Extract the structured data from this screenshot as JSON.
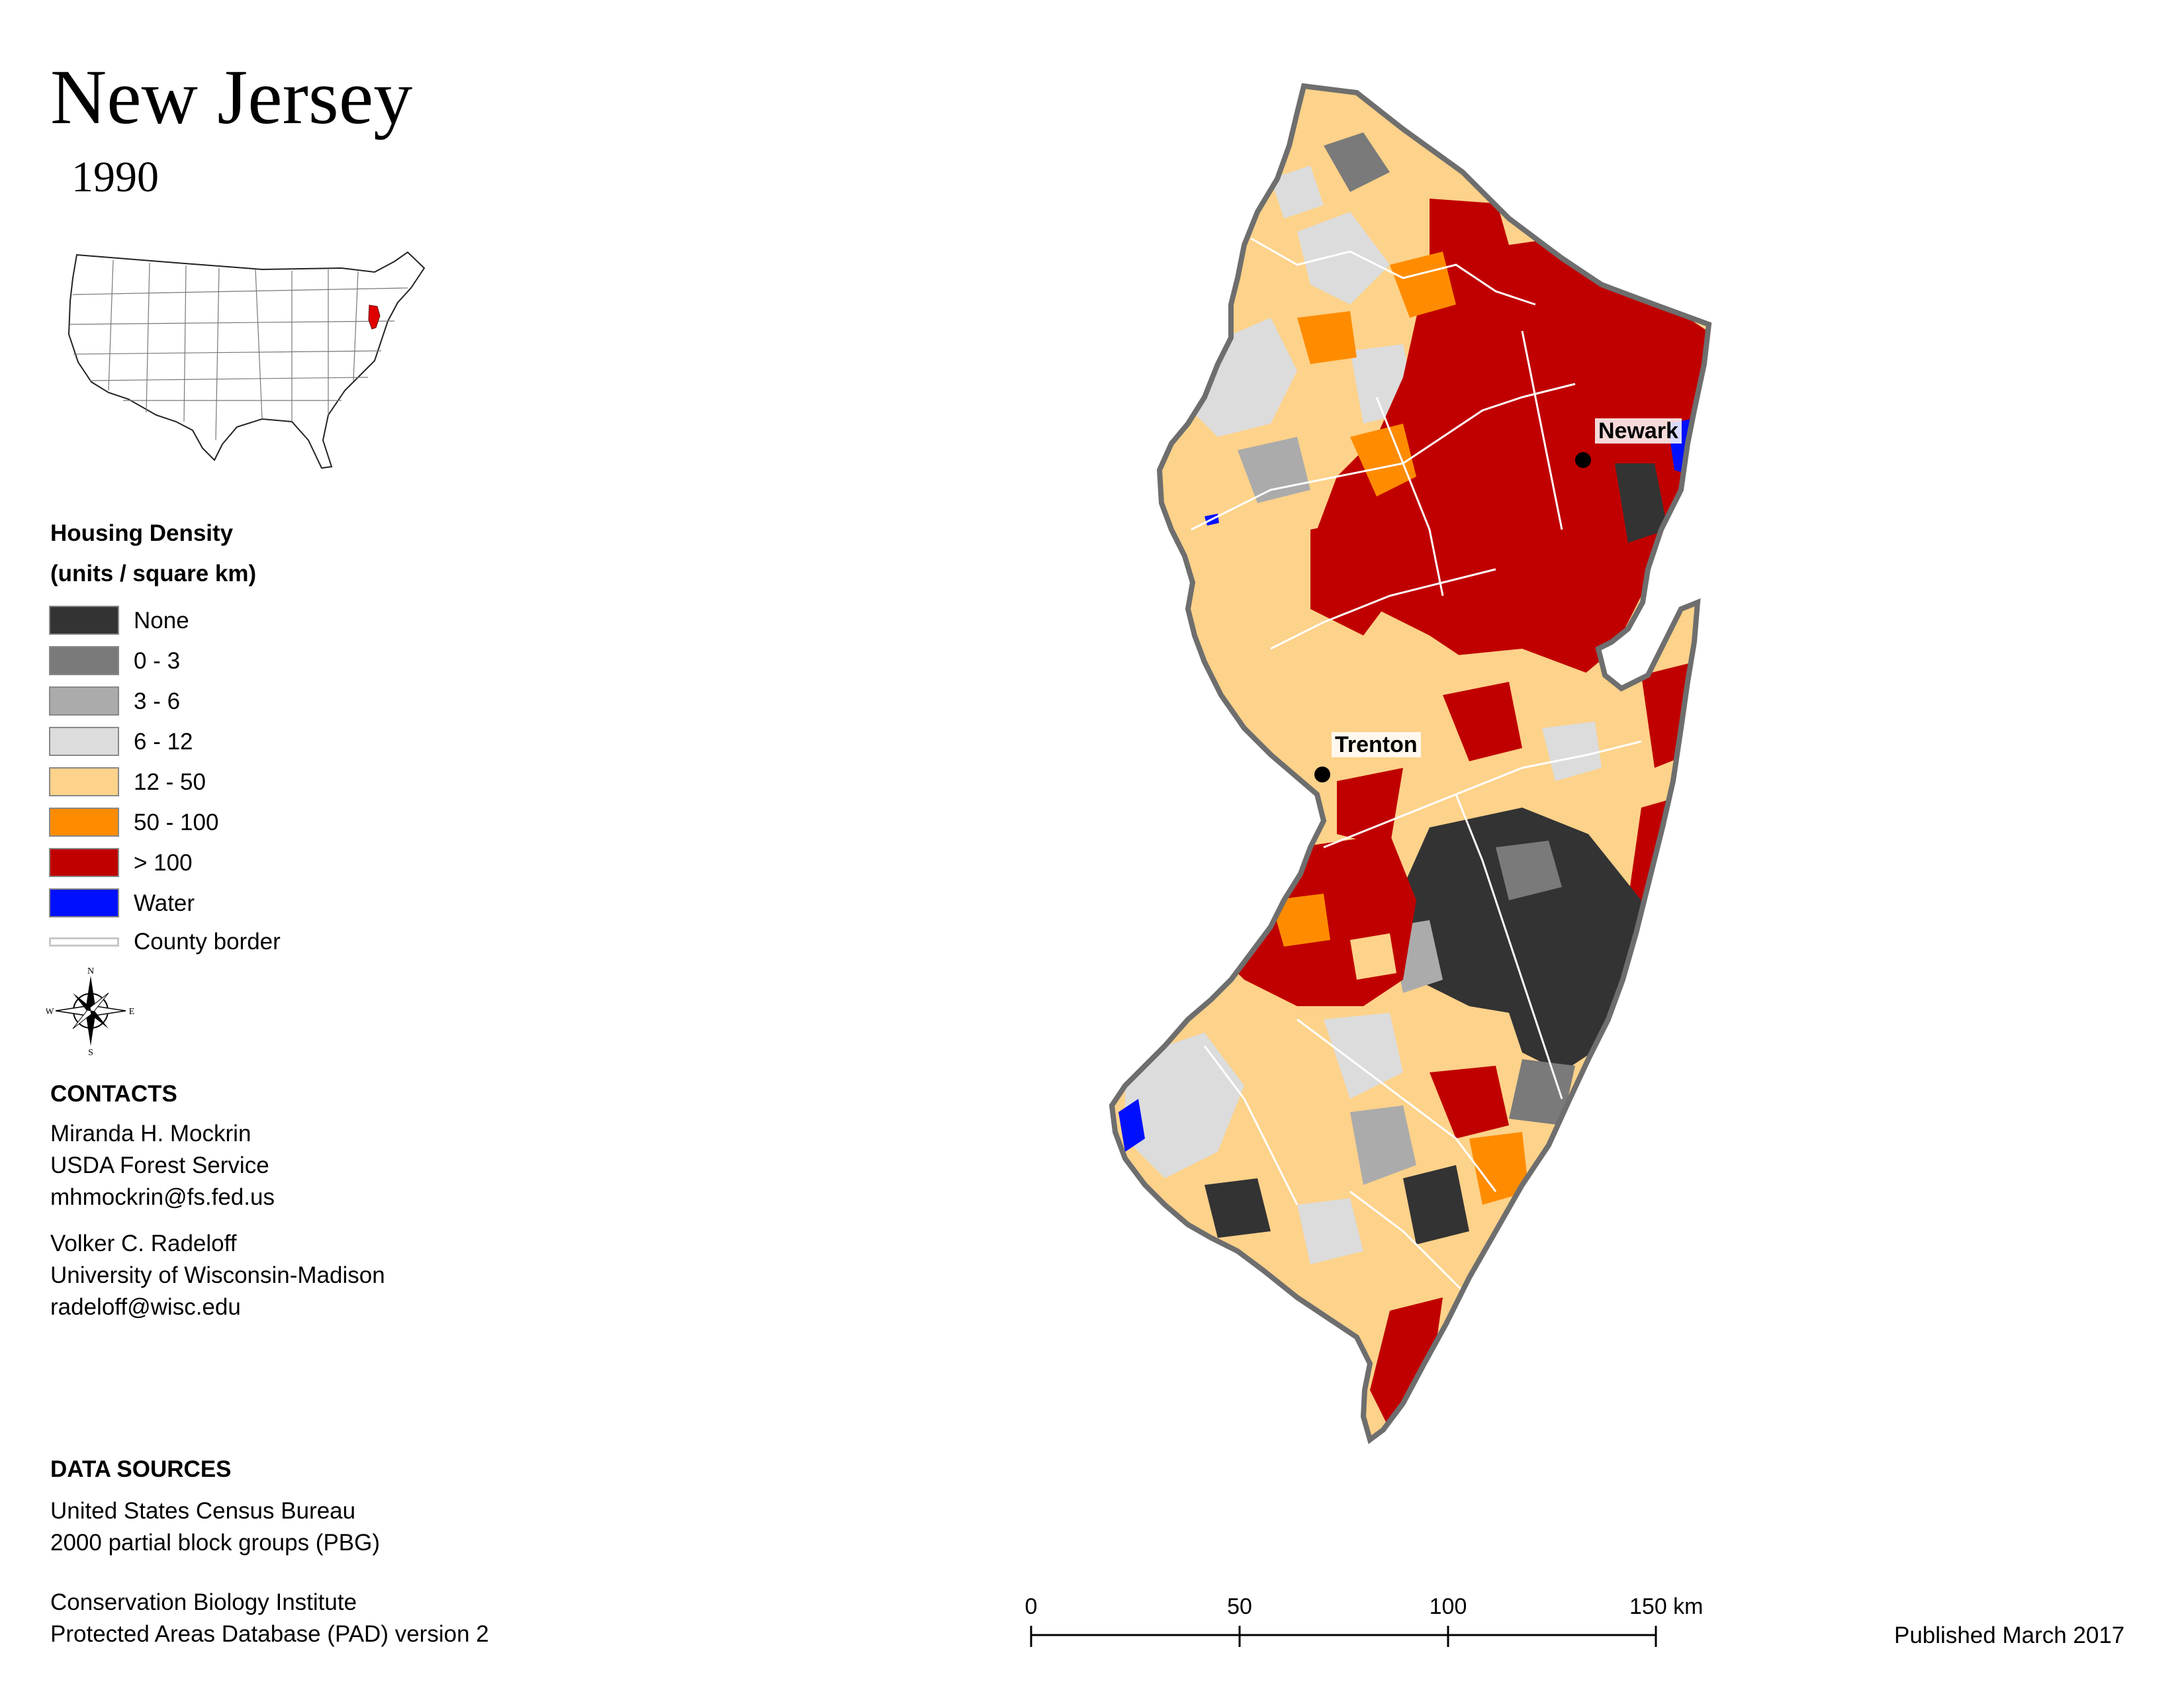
{
  "title": "New Jersey",
  "year": "1990",
  "legend": {
    "title_line1": "Housing Density",
    "title_line2": "(units / square km)",
    "classes": [
      {
        "label": "None",
        "color": "#333333"
      },
      {
        "label": "0 - 3",
        "color": "#7a7a7a"
      },
      {
        "label": "3 - 6",
        "color": "#ababab"
      },
      {
        "label": "6 - 12",
        "color": "#dcdcdc"
      },
      {
        "label": "12 - 50",
        "color": "#fdd28a"
      },
      {
        "label": "50 - 100",
        "color": "#ff8c00"
      },
      {
        "label": "> 100",
        "color": "#c00000"
      },
      {
        "label": "Water",
        "color": "#0010ff"
      }
    ],
    "county_border_label": "County border"
  },
  "compass": {
    "n": "N",
    "s": "S",
    "e": "E",
    "w": "W"
  },
  "contacts": {
    "heading": "CONTACTS",
    "people": [
      {
        "name": "Miranda H. Mockrin",
        "org": "USDA Forest Service",
        "email": "mhmockrin@fs.fed.us"
      },
      {
        "name": "Volker C. Radeloff",
        "org": "University of Wisconsin-Madison",
        "email": "radeloff@wisc.edu"
      }
    ]
  },
  "data_sources": {
    "heading": "DATA SOURCES",
    "lines": [
      "United States Census Bureau",
      "2000 partial block groups (PBG)",
      "Conservation Biology Institute",
      "Protected Areas Database (PAD) version 2"
    ]
  },
  "cities": [
    {
      "name": "Newark"
    },
    {
      "name": "Trenton"
    }
  ],
  "scale_bar": {
    "labels": [
      "0",
      "50",
      "100",
      "150 km"
    ]
  },
  "published": "Published March 2017"
}
